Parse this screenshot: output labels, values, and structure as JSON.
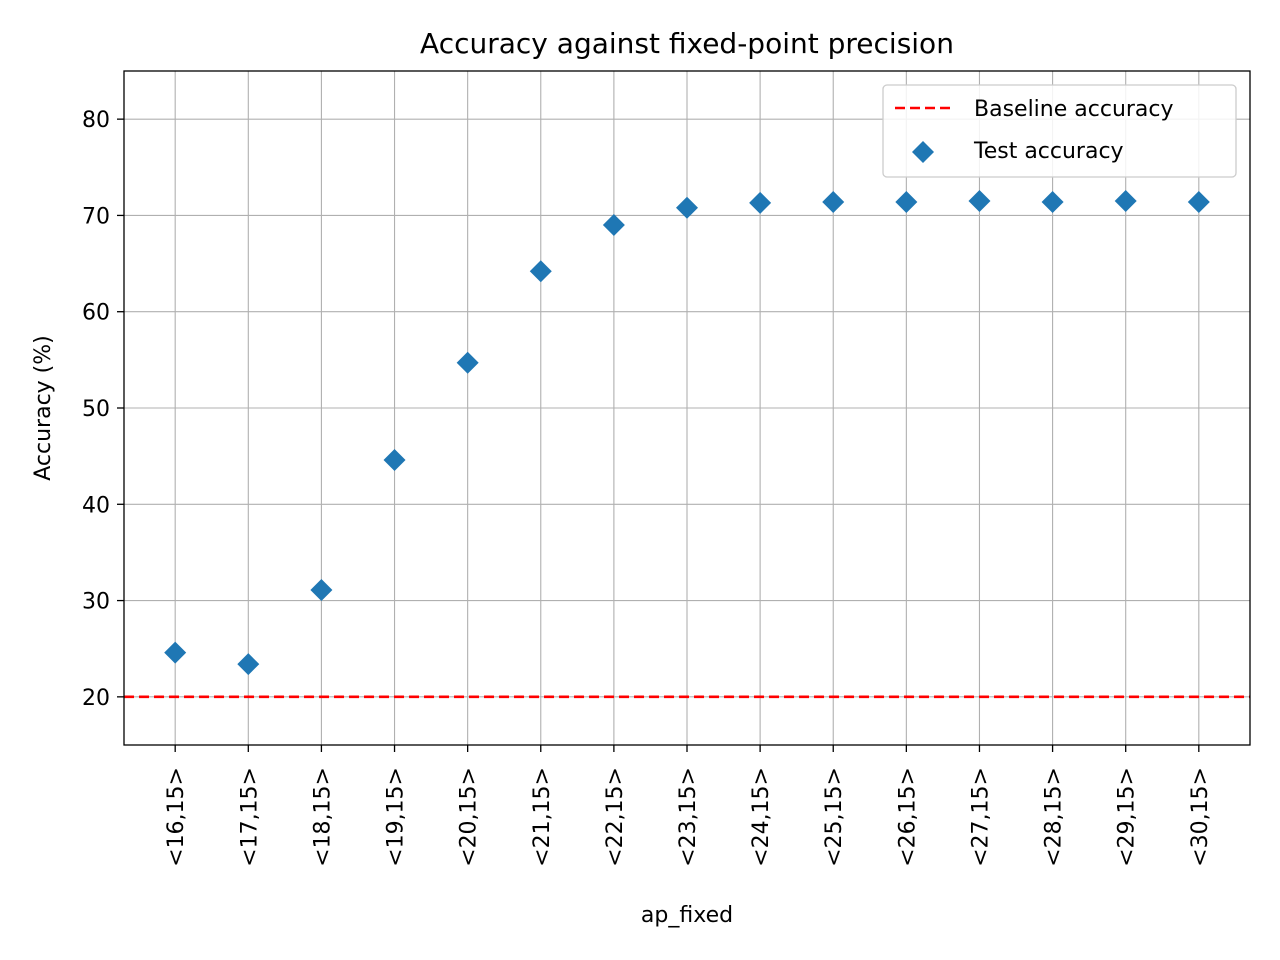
{
  "chart_data": {
    "type": "scatter",
    "title": "Accuracy against fixed-point precision",
    "xlabel": "ap_fixed",
    "ylabel": "Accuracy (%)",
    "categories": [
      "<16,15>",
      "<17,15>",
      "<18,15>",
      "<19,15>",
      "<20,15>",
      "<21,15>",
      "<22,15>",
      "<23,15>",
      "<24,15>",
      "<25,15>",
      "<26,15>",
      "<27,15>",
      "<28,15>",
      "<29,15>",
      "<30,15>"
    ],
    "ylim": [
      15,
      85
    ],
    "yticks": [
      20,
      30,
      40,
      50,
      60,
      70,
      80
    ],
    "grid": true,
    "legend_position": "top-right",
    "series": [
      {
        "name": "Test accuracy",
        "kind": "scatter",
        "marker": "diamond",
        "color": "#1f77b4",
        "values": [
          24.6,
          23.4,
          31.1,
          44.6,
          54.7,
          64.2,
          69.0,
          70.8,
          71.3,
          71.4,
          71.4,
          71.5,
          71.4,
          71.5,
          71.4
        ]
      },
      {
        "name": "Baseline accuracy",
        "kind": "hline",
        "line_style": "dashed",
        "color": "#ff0000",
        "value": 20
      }
    ]
  }
}
